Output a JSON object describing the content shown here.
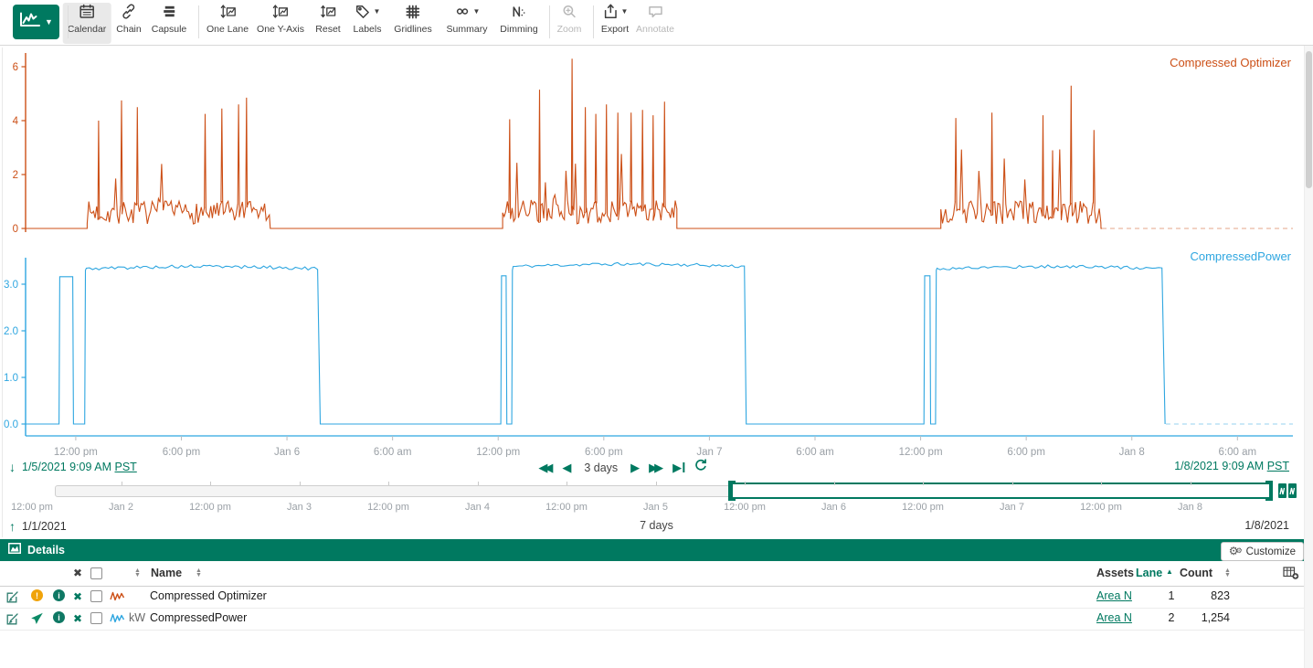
{
  "colors": {
    "brand": "#007960",
    "series1": "#cc4f16",
    "series2": "#2ea6e0",
    "warning": "#f0a30a",
    "tick_text": "#9aa0a6"
  },
  "toolbar": {
    "tools": [
      {
        "id": "calendar",
        "label": "Calendar",
        "icon": "calendar",
        "active": true,
        "enabled": true
      },
      {
        "id": "chain",
        "label": "Chain",
        "icon": "chain",
        "enabled": true
      },
      {
        "id": "capsule",
        "label": "Capsule",
        "icon": "capsule",
        "enabled": true
      },
      {
        "id": "one-lane",
        "label": "One Lane",
        "icon": "onelane",
        "enabled": true
      },
      {
        "id": "one-y-axis",
        "label": "One Y-Axis",
        "icon": "onelane",
        "enabled": true
      },
      {
        "id": "reset",
        "label": "Reset",
        "icon": "reset",
        "enabled": true
      },
      {
        "id": "labels",
        "label": "Labels",
        "icon": "labels",
        "caret": true,
        "enabled": true
      },
      {
        "id": "gridlines",
        "label": "Gridlines",
        "icon": "gridlines",
        "enabled": true
      },
      {
        "id": "summary",
        "label": "Summary",
        "icon": "summary",
        "caret": true,
        "enabled": true
      },
      {
        "id": "dimming",
        "label": "Dimming",
        "icon": "dimming",
        "enabled": true
      },
      {
        "id": "zoom",
        "label": "Zoom",
        "icon": "zoomtool",
        "enabled": false
      },
      {
        "id": "export",
        "label": "Export",
        "icon": "export",
        "caret": true,
        "enabled": true
      },
      {
        "id": "annotate",
        "label": "Annotate",
        "icon": "annotate",
        "enabled": false
      }
    ]
  },
  "display_range": {
    "start": "1/5/2021 9:09 AM",
    "start_tz": "PST",
    "end": "1/8/2021 9:09 AM",
    "end_tz": "PST",
    "duration": "3 days"
  },
  "investigate_range": {
    "start": "1/1/2021",
    "end": "1/8/2021",
    "duration": "7 days"
  },
  "xaxis": {
    "ticks": [
      {
        "t": 2.85,
        "label": "12:00 pm"
      },
      {
        "t": 8.85,
        "label": "6:00 pm"
      },
      {
        "t": 14.85,
        "label": "Jan 6"
      },
      {
        "t": 20.85,
        "label": "6:00 am"
      },
      {
        "t": 26.85,
        "label": "12:00 pm"
      },
      {
        "t": 32.85,
        "label": "6:00 pm"
      },
      {
        "t": 38.85,
        "label": "Jan 7"
      },
      {
        "t": 44.85,
        "label": "6:00 am"
      },
      {
        "t": 50.85,
        "label": "12:00 pm"
      },
      {
        "t": 56.85,
        "label": "6:00 pm"
      },
      {
        "t": 62.85,
        "label": "Jan 8"
      },
      {
        "t": 68.85,
        "label": "6:00 am"
      }
    ]
  },
  "scrubber": {
    "ticks": [
      {
        "t": 12,
        "label": "12:00 pm"
      },
      {
        "t": 24,
        "label": "Jan 2"
      },
      {
        "t": 36,
        "label": "12:00 pm"
      },
      {
        "t": 48,
        "label": "Jan 3"
      },
      {
        "t": 60,
        "label": "12:00 pm"
      },
      {
        "t": 72,
        "label": "Jan 4"
      },
      {
        "t": 84,
        "label": "12:00 pm"
      },
      {
        "t": 96,
        "label": "Jan 5"
      },
      {
        "t": 108,
        "label": "12:00 pm"
      },
      {
        "t": 120,
        "label": "Jan 6"
      },
      {
        "t": 132,
        "label": "12:00 pm"
      },
      {
        "t": 144,
        "label": "Jan 7"
      },
      {
        "t": 156,
        "label": "12:00 pm"
      },
      {
        "t": 168,
        "label": "Jan 8"
      }
    ]
  },
  "chart_data": [
    {
      "type": "line",
      "series_name": "Compressed Optimizer",
      "color": "#cc4f16",
      "unit": "",
      "x_start": "1/5/2021 9:09 AM PST",
      "x_hours": 72,
      "ylim": [
        0,
        6.5
      ],
      "yticks": [
        {
          "v": 0,
          "label": "0"
        },
        {
          "v": 2,
          "label": "2"
        },
        {
          "v": 4,
          "label": "4"
        },
        {
          "v": 6,
          "label": "6"
        }
      ],
      "solid_until": 61.15,
      "segments": [
        {
          "kind": "flat",
          "t0": 0,
          "t1": 3.5,
          "v": 0
        },
        {
          "kind": "noise",
          "t0": 3.5,
          "t1": 13.9,
          "base": 0.55,
          "amp": 0.85,
          "step": 0.09,
          "seed": 7
        },
        {
          "kind": "flat",
          "t0": 13.9,
          "t1": 27.1,
          "v": 0
        },
        {
          "kind": "noise",
          "t0": 27.1,
          "t1": 37,
          "base": 0.6,
          "amp": 0.95,
          "step": 0.09,
          "seed": 21
        },
        {
          "kind": "flat",
          "t0": 37,
          "t1": 52,
          "v": 0
        },
        {
          "kind": "noise",
          "t0": 52,
          "t1": 61.1,
          "base": 0.55,
          "amp": 0.85,
          "step": 0.09,
          "seed": 40
        },
        {
          "kind": "flat",
          "t0": 61.1,
          "t1": 61.15,
          "v": 0
        }
      ],
      "spikes": [
        [
          4.15,
          4
        ],
        [
          5.45,
          4.75
        ],
        [
          6.35,
          4.5
        ],
        [
          10.2,
          4.25
        ],
        [
          11.15,
          4.45
        ],
        [
          12.1,
          4.6
        ],
        [
          12.55,
          4.85
        ],
        [
          27.5,
          4.05
        ],
        [
          29.2,
          5.15
        ],
        [
          31.05,
          6.3
        ],
        [
          31.8,
          4.5
        ],
        [
          32.4,
          4.25
        ],
        [
          33,
          4.6
        ],
        [
          33.65,
          4.3
        ],
        [
          34.4,
          4.3
        ],
        [
          35.05,
          4.4
        ],
        [
          35.65,
          4.2
        ],
        [
          36.3,
          4.7
        ],
        [
          52.85,
          4.1
        ],
        [
          54.9,
          4.3
        ],
        [
          57.8,
          4.2
        ],
        [
          58.35,
          2.9
        ],
        [
          59.4,
          5.3
        ],
        [
          60.7,
          3.65
        ]
      ]
    },
    {
      "type": "line",
      "series_name": "CompressedPower",
      "color": "#2ea6e0",
      "unit": "kW",
      "x_start": "1/5/2021 9:09 AM PST",
      "x_hours": 72,
      "ylim": [
        0,
        3.6
      ],
      "yticks": [
        {
          "v": 0,
          "label": "0.0"
        },
        {
          "v": 1,
          "label": "1.0"
        },
        {
          "v": 2,
          "label": "2.0"
        },
        {
          "v": 3,
          "label": "3.0"
        }
      ],
      "solid_until": 64.78,
      "segments": [
        {
          "kind": "steps",
          "points": [
            [
              0,
              0
            ],
            [
              1.9,
              0
            ],
            [
              1.94,
              3.16
            ],
            [
              2.68,
              3.16
            ],
            [
              2.72,
              0
            ],
            [
              3.36,
              0
            ],
            [
              3.4,
              3.3
            ]
          ]
        },
        {
          "kind": "plateau",
          "t0": 3.45,
          "t1": 16.7,
          "v": 3.33,
          "amp": 0.07,
          "step": 0.18,
          "seed": 5
        },
        {
          "kind": "steps",
          "points": [
            [
              16.74,
              0
            ],
            [
              27,
              0
            ],
            [
              27.04,
              3.18
            ],
            [
              27.3,
              3.18
            ],
            [
              27.34,
              0
            ],
            [
              27.62,
              0
            ],
            [
              27.66,
              3.3
            ]
          ]
        },
        {
          "kind": "plateau",
          "t0": 27.7,
          "t1": 40.9,
          "v": 3.38,
          "amp": 0.07,
          "step": 0.18,
          "seed": 11
        },
        {
          "kind": "steps",
          "points": [
            [
              40.94,
              0
            ],
            [
              51.04,
              0
            ],
            [
              51.08,
              3.18
            ],
            [
              51.38,
              3.18
            ],
            [
              51.42,
              0
            ],
            [
              51.7,
              0
            ],
            [
              51.74,
              3.3
            ]
          ]
        },
        {
          "kind": "plateau",
          "t0": 51.78,
          "t1": 64.7,
          "v": 3.33,
          "amp": 0.07,
          "step": 0.18,
          "seed": 17
        },
        {
          "kind": "steps",
          "points": [
            [
              64.74,
              0
            ]
          ]
        }
      ],
      "spikes": []
    }
  ],
  "details": {
    "title": "Details",
    "customize_label": "Customize",
    "columns": {
      "name": "Name",
      "assets": "Assets",
      "lane": "Lane",
      "count": "Count"
    },
    "rows": [
      {
        "status": "warning",
        "unit": "",
        "name": "Compressed Optimizer",
        "assets": "Area N",
        "lane": "1",
        "count": "823",
        "color": "#cc4f16"
      },
      {
        "status": "sent",
        "unit": "kW",
        "name": "CompressedPower",
        "assets": "Area N",
        "lane": "2",
        "count": "1,254",
        "color": "#2ea6e0"
      }
    ]
  }
}
